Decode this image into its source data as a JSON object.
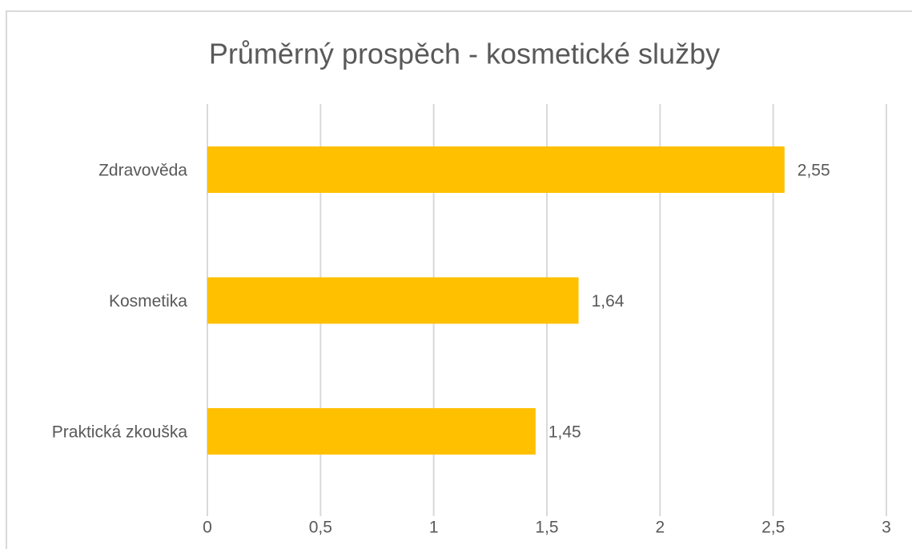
{
  "chart_data": {
    "type": "hbar",
    "title": "Průměrný prospěch - kosmetické služby",
    "categories": [
      "Zdravověda",
      "Kosmetika",
      "Praktická zkouška"
    ],
    "values": [
      2.55,
      1.64,
      1.45
    ],
    "value_labels": [
      "2,55",
      "1,64",
      "1,45"
    ],
    "color": "#ffc000",
    "xlim": [
      0,
      3
    ],
    "xticks": [
      0,
      {
        "value": 0.5,
        "label": "0,5"
      },
      1,
      {
        "value": 1.5,
        "label": "1,5"
      },
      2,
      {
        "value": 2.5,
        "label": "2,5"
      },
      3
    ],
    "grid": true
  }
}
